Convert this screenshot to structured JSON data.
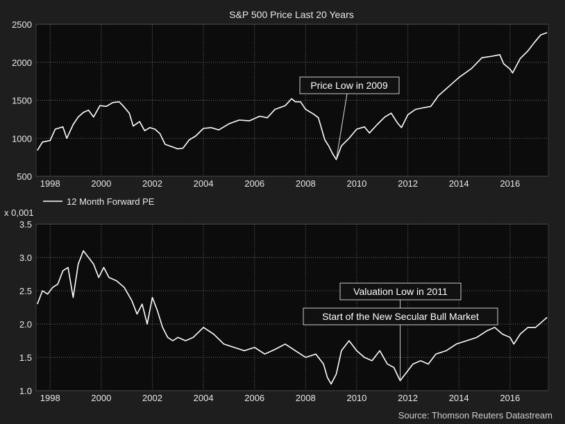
{
  "colors": {
    "background": "#1e1e1e",
    "plot_bg": "#0c0c0c",
    "line": "#ffffff",
    "grid": "#6a6a6a",
    "text": "#e8e8e8",
    "source_text": "#d0d0d0"
  },
  "source": "Source: Thomson Reuters Datastream",
  "chart_data": [
    {
      "type": "line",
      "title": "S&P 500 Price Last 20 Years",
      "xlabel": "",
      "ylabel": "",
      "xlim": [
        1997.45,
        2017.5
      ],
      "ylim": [
        500,
        2500
      ],
      "grid": true,
      "x_ticks": [
        1998,
        2000,
        2002,
        2004,
        2006,
        2008,
        2010,
        2012,
        2014,
        2016
      ],
      "y_ticks": [
        500,
        1000,
        1500,
        2000,
        2500
      ],
      "annotation": {
        "text": "Price Low in 2009",
        "x": 2009.2,
        "y": 720
      },
      "series": [
        {
          "name": "S&P 500 Price",
          "x": [
            1997.5,
            1997.7,
            1998.0,
            1998.2,
            1998.5,
            1998.65,
            1998.9,
            1999.1,
            1999.3,
            1999.5,
            1999.7,
            1999.95,
            2000.2,
            2000.45,
            2000.7,
            2000.85,
            2001.1,
            2001.25,
            2001.5,
            2001.7,
            2001.9,
            2002.1,
            2002.3,
            2002.5,
            2002.75,
            2003.0,
            2003.2,
            2003.45,
            2003.7,
            2004.0,
            2004.3,
            2004.6,
            2005.0,
            2005.4,
            2005.8,
            2006.2,
            2006.5,
            2006.8,
            2007.2,
            2007.45,
            2007.6,
            2007.8,
            2008.0,
            2008.3,
            2008.5,
            2008.75,
            2008.9,
            2009.05,
            2009.2,
            2009.4,
            2009.7,
            2010.0,
            2010.3,
            2010.5,
            2010.8,
            2011.1,
            2011.35,
            2011.6,
            2011.75,
            2012.0,
            2012.3,
            2012.6,
            2012.9,
            2013.2,
            2013.6,
            2014.0,
            2014.5,
            2014.9,
            2015.3,
            2015.6,
            2015.75,
            2016.0,
            2016.1,
            2016.4,
            2016.7,
            2016.95,
            2017.2,
            2017.45
          ],
          "y": [
            840,
            950,
            970,
            1120,
            1150,
            1000,
            1180,
            1280,
            1340,
            1370,
            1280,
            1430,
            1420,
            1470,
            1480,
            1430,
            1330,
            1160,
            1220,
            1100,
            1140,
            1120,
            1060,
            920,
            890,
            860,
            870,
            980,
            1030,
            1130,
            1140,
            1110,
            1190,
            1240,
            1230,
            1290,
            1270,
            1380,
            1430,
            1520,
            1480,
            1480,
            1380,
            1320,
            1270,
            980,
            900,
            800,
            720,
            900,
            1000,
            1120,
            1150,
            1070,
            1180,
            1280,
            1330,
            1200,
            1140,
            1310,
            1380,
            1400,
            1420,
            1560,
            1680,
            1800,
            1920,
            2060,
            2080,
            2100,
            1980,
            1910,
            1860,
            2050,
            2150,
            2260,
            2360,
            2390
          ]
        }
      ]
    },
    {
      "type": "line",
      "title": "",
      "xlabel": "",
      "ylabel": "",
      "legend": "12 Month Forward PE",
      "legend_position": "top-left",
      "y_multiplier": "x 0,001",
      "xlim": [
        1997.45,
        2017.5
      ],
      "ylim": [
        1.0,
        3.5
      ],
      "grid": true,
      "x_ticks": [
        1998,
        2000,
        2002,
        2004,
        2006,
        2008,
        2010,
        2012,
        2014,
        2016
      ],
      "y_ticks": [
        "1.0",
        "1.5",
        "2.0",
        "2.5",
        "3.0",
        "3.5"
      ],
      "annotations": [
        {
          "text": "Valuation Low in 2011",
          "x": 2011.7,
          "y": 1.15
        },
        {
          "text": "Start of the New Secular Bull Market",
          "x": 2011.7,
          "y": 1.15
        }
      ],
      "series": [
        {
          "name": "12 Month Forward PE",
          "x": [
            1997.5,
            1997.7,
            1997.9,
            1998.1,
            1998.3,
            1998.5,
            1998.7,
            1998.9,
            1999.1,
            1999.3,
            1999.5,
            1999.7,
            1999.9,
            2000.1,
            2000.3,
            2000.6,
            2000.9,
            2001.2,
            2001.4,
            2001.6,
            2001.8,
            2002.0,
            2002.2,
            2002.4,
            2002.6,
            2002.8,
            2003.0,
            2003.3,
            2003.6,
            2004.0,
            2004.4,
            2004.8,
            2005.2,
            2005.6,
            2006.0,
            2006.4,
            2006.8,
            2007.2,
            2007.6,
            2008.0,
            2008.4,
            2008.7,
            2008.85,
            2009.0,
            2009.2,
            2009.4,
            2009.7,
            2010.0,
            2010.3,
            2010.6,
            2010.9,
            2011.2,
            2011.45,
            2011.7,
            2011.9,
            2012.2,
            2012.5,
            2012.8,
            2013.1,
            2013.5,
            2013.9,
            2014.3,
            2014.7,
            2015.1,
            2015.4,
            2015.7,
            2016.0,
            2016.15,
            2016.4,
            2016.7,
            2017.0,
            2017.3,
            2017.45
          ],
          "y": [
            2.3,
            2.5,
            2.45,
            2.55,
            2.6,
            2.8,
            2.85,
            2.4,
            2.9,
            3.1,
            3.0,
            2.9,
            2.7,
            2.85,
            2.7,
            2.65,
            2.55,
            2.35,
            2.15,
            2.3,
            2.0,
            2.4,
            2.2,
            1.95,
            1.8,
            1.75,
            1.8,
            1.75,
            1.8,
            1.95,
            1.85,
            1.7,
            1.65,
            1.6,
            1.65,
            1.55,
            1.62,
            1.7,
            1.6,
            1.5,
            1.55,
            1.4,
            1.2,
            1.1,
            1.25,
            1.6,
            1.75,
            1.6,
            1.5,
            1.45,
            1.6,
            1.4,
            1.35,
            1.15,
            1.25,
            1.4,
            1.45,
            1.4,
            1.55,
            1.6,
            1.7,
            1.75,
            1.8,
            1.9,
            1.95,
            1.85,
            1.8,
            1.7,
            1.85,
            1.95,
            1.95,
            2.05,
            2.1
          ]
        }
      ]
    }
  ]
}
